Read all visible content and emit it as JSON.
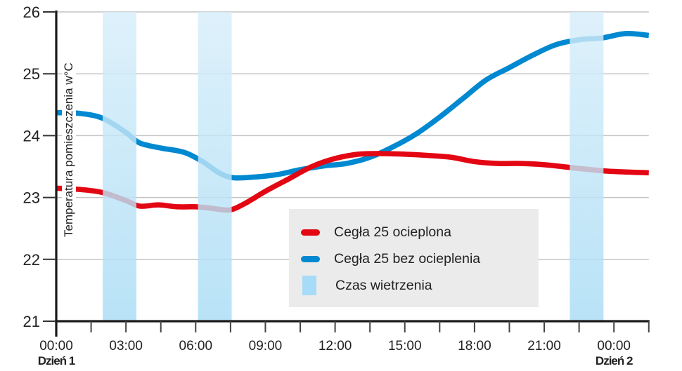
{
  "chart_data": {
    "type": "line",
    "title": "",
    "xlabel": "",
    "ylabel": "Temperatura pomieszczenia w°C",
    "ylim": [
      21,
      26
    ],
    "xlim_hours": [
      0,
      25.5
    ],
    "y_ticks": [
      21,
      22,
      23,
      24,
      25,
      26
    ],
    "x_ticks_hours": [
      0,
      1.5,
      3,
      4.5,
      6,
      7.5,
      9,
      10.5,
      12,
      13.5,
      15,
      16.5,
      18,
      19.5,
      21,
      22.5,
      24,
      25.5
    ],
    "x_tick_labels": [
      {
        "hour": 0,
        "label": "00:00",
        "sub": "Dzień 1"
      },
      {
        "hour": 3,
        "label": "03:00"
      },
      {
        "hour": 6,
        "label": "06:00"
      },
      {
        "hour": 9,
        "label": "09:00"
      },
      {
        "hour": 12,
        "label": "12:00"
      },
      {
        "hour": 15,
        "label": "15:00"
      },
      {
        "hour": 18,
        "label": "18:00"
      },
      {
        "hour": 21,
        "label": "21:00"
      },
      {
        "hour": 24,
        "label": "00:00",
        "sub": "Dzień 2"
      }
    ],
    "grid": true,
    "legend_position": "lower-center-right",
    "series": [
      {
        "name": "Cegła 25 ocieplona",
        "color": "#e30613",
        "points": [
          [
            0,
            23.15
          ],
          [
            1,
            23.13
          ],
          [
            2,
            23.08
          ],
          [
            3,
            22.95
          ],
          [
            3.6,
            22.86
          ],
          [
            4.4,
            22.88
          ],
          [
            5.2,
            22.85
          ],
          [
            6,
            22.85
          ],
          [
            6.6,
            22.83
          ],
          [
            7.2,
            22.8
          ],
          [
            7.6,
            22.81
          ],
          [
            8.2,
            22.92
          ],
          [
            9,
            23.1
          ],
          [
            10,
            23.3
          ],
          [
            11,
            23.5
          ],
          [
            12,
            23.63
          ],
          [
            13,
            23.7
          ],
          [
            14,
            23.71
          ],
          [
            15,
            23.7
          ],
          [
            16,
            23.68
          ],
          [
            17,
            23.65
          ],
          [
            18,
            23.58
          ],
          [
            19,
            23.55
          ],
          [
            20,
            23.55
          ],
          [
            21,
            23.53
          ],
          [
            22,
            23.49
          ],
          [
            23,
            23.45
          ],
          [
            24,
            23.42
          ],
          [
            25.5,
            23.4
          ]
        ]
      },
      {
        "name": "Cegła 25 bez ocieplenia",
        "color": "#0088d1",
        "points": [
          [
            0,
            24.37
          ],
          [
            1,
            24.36
          ],
          [
            2,
            24.28
          ],
          [
            3,
            24.05
          ],
          [
            3.6,
            23.88
          ],
          [
            4.5,
            23.8
          ],
          [
            5.5,
            23.73
          ],
          [
            6.3,
            23.58
          ],
          [
            7,
            23.4
          ],
          [
            7.6,
            23.32
          ],
          [
            8.5,
            23.33
          ],
          [
            9.5,
            23.37
          ],
          [
            10.5,
            23.45
          ],
          [
            11.5,
            23.51
          ],
          [
            12.5,
            23.55
          ],
          [
            13.5,
            23.65
          ],
          [
            14.5,
            23.82
          ],
          [
            15.5,
            24.03
          ],
          [
            16.5,
            24.3
          ],
          [
            17.5,
            24.6
          ],
          [
            18.5,
            24.9
          ],
          [
            19.5,
            25.1
          ],
          [
            20.5,
            25.3
          ],
          [
            21.5,
            25.47
          ],
          [
            22.5,
            25.55
          ],
          [
            23.5,
            25.58
          ],
          [
            24.5,
            25.65
          ],
          [
            25.5,
            25.62
          ]
        ]
      }
    ],
    "bands": {
      "name": "Czas wietrzenia",
      "ranges_hours": [
        [
          2.0,
          3.45
        ],
        [
          6.1,
          7.55
        ],
        [
          22.1,
          23.55
        ]
      ],
      "color_top": "#d7eefa",
      "color_bottom": "#a9dcf5"
    }
  },
  "legend": {
    "items": [
      {
        "label": "Cegła 25 ocieplona",
        "color": "#e30613"
      },
      {
        "label": "Cegła 25 bez ocieplenia",
        "color": "#0088d1"
      },
      {
        "label": "Czas wietrzenia",
        "color": "#a6dcf7"
      }
    ]
  },
  "axis": {
    "y_title": "Temperatura pomieszczenia w°C"
  }
}
